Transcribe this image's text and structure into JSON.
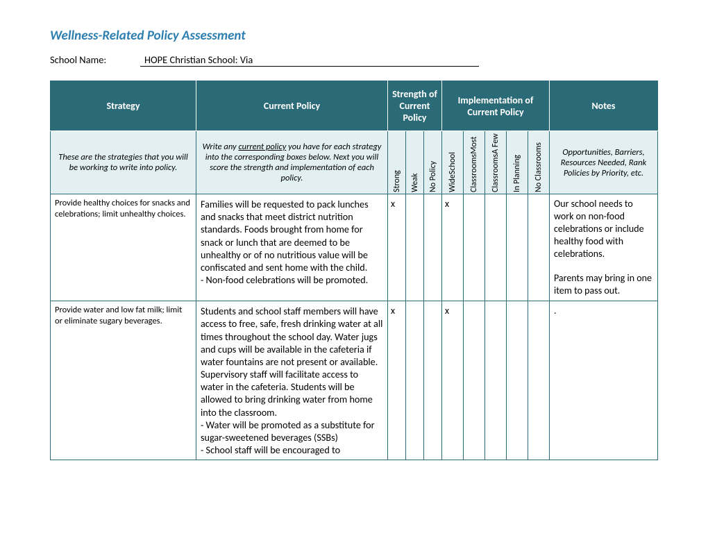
{
  "title": "Wellness-Related Policy Assessment",
  "school_name_label": "School Name:",
  "school_name_value": "HOPE Christian School: Via",
  "colors": {
    "title_color": "#2e7faf",
    "header_bg": "#2b6a77",
    "header_fg": "#ffffff",
    "subhead_bg": "#e2f0f2",
    "border": "#2b6a77"
  },
  "headers": {
    "strategy": "Strategy",
    "current_policy": "Current Policy",
    "strength": "Strength of Current Policy",
    "implementation": "Implementation of Current Policy",
    "notes": "Notes"
  },
  "subheaders": {
    "strategy_desc": "These are the strategies that you will be working to write into policy.",
    "policy_desc_pre": "Write any ",
    "policy_desc_underline": "current policy",
    "policy_desc_post": " you have for each strategy into the corresponding boxes below. Next you will score the strength and implementation of each policy.",
    "strength_cols": [
      "Strong",
      "Weak",
      "No Policy"
    ],
    "impl_cols": [
      "WideSchool",
      "ClassroomsMost",
      "ClassroomsA Few",
      "In Planning",
      "No Classrooms"
    ],
    "notes_desc": "Opportunities, Barriers, Resources Needed, Rank Policies by Priority, etc."
  },
  "rows": [
    {
      "strategy": "Provide healthy choices for snacks and celebrations; limit unhealthy choices.",
      "policy": "Families will be requested to pack lunches and snacks that meet district nutrition standards. Foods brought from home for snack or lunch that are deemed to be unhealthy or of no nutritious value will be confiscated and sent home with the child.\n- Non-food celebrations will be promoted.",
      "strength": [
        "x",
        "",
        ""
      ],
      "impl": [
        "x",
        "",
        "",
        "",
        ""
      ],
      "notes": "Our school needs to work on non-food celebrations or include healthy food with celebrations.\n\nParents may bring in one item to pass out."
    },
    {
      "strategy": "Provide water and low fat milk; limit or eliminate sugary beverages.",
      "policy": "Students and school staff members will have access to free, safe, fresh drinking water at all times throughout the school day. Water jugs and cups will be available in the cafeteria if water fountains are not present or available. Supervisory staff will facilitate access to water in the cafeteria. Students will be allowed to bring drinking water from home into the classroom.\n- Water will be promoted as a substitute for sugar-sweetened beverages (SSBs)\n- School staff will be encouraged to",
      "strength": [
        "x",
        "",
        ""
      ],
      "impl": [
        "x",
        "",
        "",
        "",
        ""
      ],
      "notes": "."
    }
  ]
}
